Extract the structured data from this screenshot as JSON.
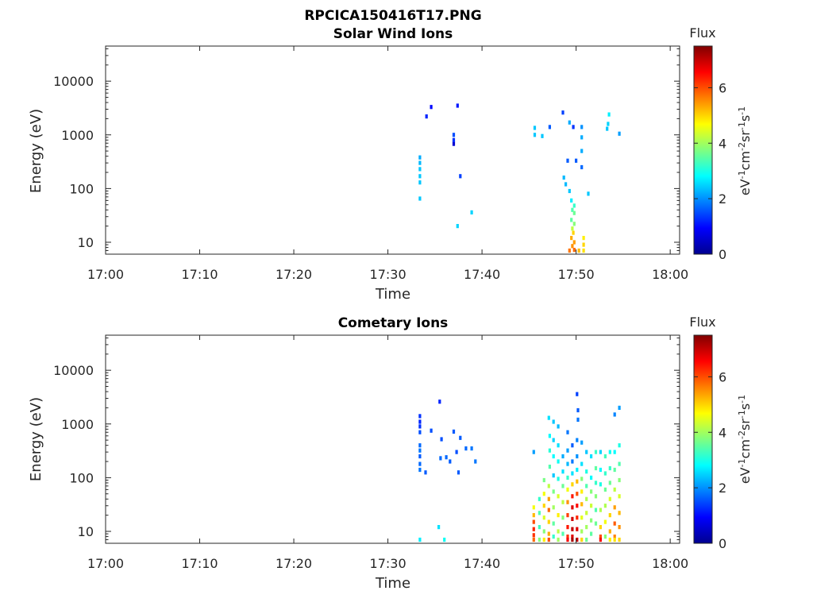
{
  "figure": {
    "title": "RPCICA150416T17.PNG"
  },
  "chart_data": [
    {
      "type": "heatmap",
      "title": "Solar Wind Ions",
      "xlabel": "Time",
      "ylabel": "Energy (eV)",
      "x_ticks": [
        "17:00",
        "17:10",
        "17:20",
        "17:30",
        "17:40",
        "17:50",
        "18:00"
      ],
      "x_range_minutes": [
        0,
        61
      ],
      "y_ticks": [
        "10",
        "100",
        "1000",
        "10000"
      ],
      "y_tick_values": [
        10,
        100,
        1000,
        10000
      ],
      "y_scale": "log",
      "y_range": [
        6,
        45000
      ],
      "colorbar": {
        "title": "Flux",
        "label": "eV-1cm-2sr-1s-1",
        "range": [
          0,
          7.5
        ],
        "ticks": [
          "0",
          "2",
          "4",
          "6"
        ],
        "tick_values": [
          0,
          2,
          4,
          6
        ]
      },
      "cells": [
        [
          33.4,
          65,
          2.4
        ],
        [
          33.4,
          130,
          2.4
        ],
        [
          33.4,
          170,
          2.4
        ],
        [
          33.4,
          230,
          2.4
        ],
        [
          33.4,
          300,
          2.3
        ],
        [
          33.4,
          380,
          2.2
        ],
        [
          34.1,
          2200,
          1.2
        ],
        [
          34.6,
          3300,
          1.0
        ],
        [
          37.0,
          680,
          0.6
        ],
        [
          37.0,
          800,
          1.3
        ],
        [
          37.0,
          1000,
          1.5
        ],
        [
          37.4,
          3500,
          1.1
        ],
        [
          37.7,
          170,
          1.4
        ],
        [
          37.4,
          20,
          2.5
        ],
        [
          38.9,
          36,
          2.5
        ],
        [
          45.6,
          1000,
          2.4
        ],
        [
          45.6,
          1350,
          2.4
        ],
        [
          46.4,
          950,
          2.4
        ],
        [
          47.2,
          1400,
          1.6
        ],
        [
          48.6,
          2600,
          1.4
        ],
        [
          49.3,
          1700,
          2.2
        ],
        [
          49.7,
          1400,
          1.3
        ],
        [
          50.6,
          1400,
          2.0
        ],
        [
          50.6,
          900,
          2.2
        ],
        [
          50.6,
          500,
          2.2
        ],
        [
          49.1,
          330,
          1.6
        ],
        [
          50.0,
          330,
          1.6
        ],
        [
          50.6,
          250,
          1.7
        ],
        [
          48.7,
          160,
          2.3
        ],
        [
          48.9,
          120,
          2.3
        ],
        [
          49.3,
          90,
          2.4
        ],
        [
          51.3,
          80,
          2.4
        ],
        [
          49.5,
          60,
          2.7
        ],
        [
          49.8,
          48,
          3.2
        ],
        [
          49.6,
          40,
          3.4
        ],
        [
          49.8,
          35,
          3.6
        ],
        [
          49.5,
          26,
          3.5
        ],
        [
          49.8,
          22,
          3.8
        ],
        [
          49.6,
          18,
          4.2
        ],
        [
          49.7,
          15,
          5.0
        ],
        [
          49.5,
          12,
          5.3
        ],
        [
          49.8,
          10,
          5.4
        ],
        [
          49.6,
          8.5,
          5.5
        ],
        [
          49.8,
          7.2,
          5.8
        ],
        [
          49.3,
          7.0,
          5.7
        ],
        [
          50.3,
          7.0,
          5.2
        ],
        [
          50.8,
          12,
          4.8
        ],
        [
          50.8,
          9,
          5.0
        ],
        [
          50.8,
          7.0,
          4.9
        ],
        [
          53.3,
          1300,
          2.4
        ],
        [
          53.4,
          1600,
          2.5
        ],
        [
          53.5,
          2400,
          2.7
        ],
        [
          54.6,
          1050,
          2.1
        ]
      ]
    },
    {
      "type": "heatmap",
      "title": "Cometary Ions",
      "xlabel": "Time",
      "ylabel": "Energy (eV)",
      "x_ticks": [
        "17:00",
        "17:10",
        "17:20",
        "17:30",
        "17:40",
        "17:50",
        "18:00"
      ],
      "x_range_minutes": [
        0,
        61
      ],
      "y_ticks": [
        "10",
        "100",
        "1000",
        "10000"
      ],
      "y_tick_values": [
        10,
        100,
        1000,
        10000
      ],
      "y_scale": "log",
      "y_range": [
        6,
        45000
      ],
      "colorbar": {
        "title": "Flux",
        "label": "eV-1cm-2sr-1s-1",
        "range": [
          0,
          7.5
        ],
        "ticks": [
          "0",
          "2",
          "4",
          "6"
        ],
        "tick_values": [
          0,
          2,
          4,
          6
        ]
      },
      "cells": [
        [
          33.4,
          1400,
          1.3
        ],
        [
          33.4,
          1100,
          1.2
        ],
        [
          33.4,
          900,
          1.3
        ],
        [
          33.4,
          700,
          1.5
        ],
        [
          33.4,
          400,
          1.7
        ],
        [
          33.4,
          320,
          1.8
        ],
        [
          33.4,
          250,
          1.6
        ],
        [
          33.4,
          180,
          1.7
        ],
        [
          33.4,
          140,
          1.8
        ],
        [
          34.0,
          125,
          1.6
        ],
        [
          33.4,
          7.0,
          2.7
        ],
        [
          34.6,
          750,
          1.5
        ],
        [
          35.5,
          2600,
          1.2
        ],
        [
          35.7,
          520,
          1.5
        ],
        [
          35.6,
          230,
          1.7
        ],
        [
          36.2,
          240,
          1.7
        ],
        [
          36.6,
          200,
          1.6
        ],
        [
          35.4,
          12,
          2.6
        ],
        [
          36.0,
          7.0,
          2.9
        ],
        [
          37.0,
          720,
          1.6
        ],
        [
          37.7,
          550,
          1.6
        ],
        [
          37.3,
          300,
          1.5
        ],
        [
          38.3,
          350,
          1.7
        ],
        [
          38.9,
          350,
          1.8
        ],
        [
          39.3,
          200,
          1.8
        ],
        [
          37.5,
          125,
          1.6
        ],
        [
          45.5,
          300,
          2.1
        ],
        [
          45.5,
          28,
          4.6
        ],
        [
          45.5,
          20,
          5.2
        ],
        [
          45.5,
          15,
          6.0
        ],
        [
          45.5,
          11,
          6.3
        ],
        [
          45.5,
          8.5,
          6.2
        ],
        [
          45.5,
          7.0,
          5.8
        ],
        [
          46.1,
          40,
          3.2
        ],
        [
          46.1,
          22,
          3.4
        ],
        [
          46.1,
          12,
          3.3
        ],
        [
          46.1,
          7.0,
          3.8
        ],
        [
          46.6,
          90,
          3.7
        ],
        [
          46.6,
          50,
          4.6
        ],
        [
          46.6,
          30,
          5.0
        ],
        [
          46.6,
          18,
          4.4
        ],
        [
          46.6,
          10,
          3.8
        ],
        [
          46.6,
          7.0,
          4.8
        ],
        [
          47.1,
          1300,
          2.6
        ],
        [
          47.2,
          600,
          2.8
        ],
        [
          47.2,
          320,
          3.1
        ],
        [
          47.2,
          160,
          3.4
        ],
        [
          47.1,
          70,
          4.2
        ],
        [
          47.1,
          40,
          5.4
        ],
        [
          47.1,
          25,
          5.8
        ],
        [
          47.1,
          15,
          5.0
        ],
        [
          47.1,
          9,
          5.3
        ],
        [
          47.1,
          7.0,
          6.0
        ],
        [
          47.6,
          1100,
          2.4
        ],
        [
          47.6,
          500,
          2.5
        ],
        [
          47.6,
          250,
          2.8
        ],
        [
          47.6,
          110,
          2.4
        ],
        [
          47.6,
          55,
          3.7
        ],
        [
          47.6,
          28,
          4.0
        ],
        [
          47.6,
          14,
          3.5
        ],
        [
          47.6,
          8,
          3.2
        ],
        [
          48.1,
          900,
          2.3
        ],
        [
          48.1,
          400,
          2.6
        ],
        [
          48.1,
          200,
          2.9
        ],
        [
          48.1,
          95,
          3.0
        ],
        [
          48.1,
          45,
          4.4
        ],
        [
          48.1,
          20,
          4.8
        ],
        [
          48.1,
          10,
          4.2
        ],
        [
          48.1,
          7.0,
          4.0
        ],
        [
          48.6,
          250,
          2.2
        ],
        [
          48.6,
          130,
          2.6
        ],
        [
          48.6,
          70,
          3.6
        ],
        [
          48.6,
          35,
          4.2
        ],
        [
          48.6,
          18,
          3.8
        ],
        [
          48.6,
          9,
          3.4
        ],
        [
          49.1,
          700,
          1.8
        ],
        [
          49.1,
          320,
          2.1
        ],
        [
          49.1,
          180,
          2.3
        ],
        [
          49.1,
          100,
          3.2
        ],
        [
          49.1,
          60,
          4.6
        ],
        [
          49.1,
          35,
          5.5
        ],
        [
          49.1,
          20,
          6.1
        ],
        [
          49.1,
          12,
          6.4
        ],
        [
          49.1,
          8,
          6.2
        ],
        [
          49.1,
          7.0,
          6.6
        ],
        [
          49.6,
          400,
          1.6
        ],
        [
          49.6,
          200,
          1.8
        ],
        [
          49.6,
          120,
          2.6
        ],
        [
          49.6,
          75,
          5.0
        ],
        [
          49.6,
          45,
          6.4
        ],
        [
          49.6,
          28,
          6.8
        ],
        [
          49.6,
          17,
          6.9
        ],
        [
          49.6,
          11,
          7.0
        ],
        [
          49.6,
          8,
          6.8
        ],
        [
          49.6,
          7.0,
          7.2
        ],
        [
          50.1,
          3600,
          1.4
        ],
        [
          50.2,
          1800,
          1.6
        ],
        [
          50.2,
          1200,
          1.8
        ],
        [
          50.1,
          500,
          1.9
        ],
        [
          50.1,
          250,
          2.0
        ],
        [
          50.1,
          140,
          2.7
        ],
        [
          50.1,
          85,
          5.2
        ],
        [
          50.1,
          50,
          6.0
        ],
        [
          50.1,
          30,
          6.5
        ],
        [
          50.1,
          18,
          6.3
        ],
        [
          50.1,
          11,
          6.8
        ],
        [
          50.1,
          7.0,
          6.9
        ],
        [
          50.6,
          450,
          2.1
        ],
        [
          50.6,
          180,
          2.6
        ],
        [
          50.6,
          95,
          3.8
        ],
        [
          50.6,
          55,
          4.8
        ],
        [
          50.6,
          32,
          5.2
        ],
        [
          50.6,
          18,
          4.5
        ],
        [
          50.6,
          10,
          4.0
        ],
        [
          50.6,
          7.0,
          5.0
        ],
        [
          51.1,
          300,
          2.4
        ],
        [
          51.1,
          130,
          3.0
        ],
        [
          51.1,
          70,
          3.4
        ],
        [
          51.1,
          40,
          4.1
        ],
        [
          51.1,
          22,
          4.3
        ],
        [
          51.1,
          12,
          4.0
        ],
        [
          51.1,
          7.0,
          3.6
        ],
        [
          51.6,
          250,
          2.6
        ],
        [
          51.6,
          100,
          2.8
        ],
        [
          51.6,
          55,
          3.8
        ],
        [
          51.6,
          30,
          4.3
        ],
        [
          51.6,
          16,
          3.8
        ],
        [
          51.6,
          9,
          3.5
        ],
        [
          52.1,
          300,
          3.2
        ],
        [
          52.1,
          150,
          3.5
        ],
        [
          52.1,
          80,
          3.2
        ],
        [
          52.1,
          45,
          3.8
        ],
        [
          52.1,
          25,
          3.4
        ],
        [
          52.1,
          14,
          3.6
        ],
        [
          52.6,
          300,
          2.5
        ],
        [
          52.6,
          140,
          2.8
        ],
        [
          52.6,
          75,
          3.0
        ],
        [
          52.6,
          25,
          4.1
        ],
        [
          52.6,
          12,
          5.0
        ],
        [
          52.6,
          8,
          6.0
        ],
        [
          52.6,
          7.0,
          6.6
        ],
        [
          53.1,
          250,
          3.3
        ],
        [
          53.1,
          120,
          3.2
        ],
        [
          53.1,
          60,
          3.6
        ],
        [
          53.1,
          30,
          4.1
        ],
        [
          53.1,
          15,
          4.6
        ],
        [
          53.1,
          8,
          3.8
        ],
        [
          53.6,
          300,
          2.9
        ],
        [
          53.6,
          150,
          3.2
        ],
        [
          53.6,
          80,
          3.6
        ],
        [
          53.6,
          40,
          4.4
        ],
        [
          53.6,
          20,
          5.0
        ],
        [
          53.6,
          10,
          5.3
        ],
        [
          53.6,
          7.0,
          4.8
        ],
        [
          54.1,
          1500,
          1.9
        ],
        [
          54.1,
          300,
          2.8
        ],
        [
          54.1,
          140,
          3.5
        ],
        [
          54.1,
          60,
          4.2
        ],
        [
          54.1,
          28,
          5.4
        ],
        [
          54.1,
          14,
          5.9
        ],
        [
          54.1,
          8,
          5.6
        ],
        [
          54.1,
          7.0,
          4.9
        ],
        [
          54.6,
          2000,
          2.1
        ],
        [
          54.6,
          400,
          3.0
        ],
        [
          54.6,
          180,
          3.4
        ],
        [
          54.6,
          90,
          3.8
        ],
        [
          54.6,
          45,
          4.4
        ],
        [
          54.6,
          22,
          5.2
        ],
        [
          54.6,
          12,
          5.5
        ],
        [
          54.6,
          7.0,
          5.0
        ]
      ]
    }
  ]
}
